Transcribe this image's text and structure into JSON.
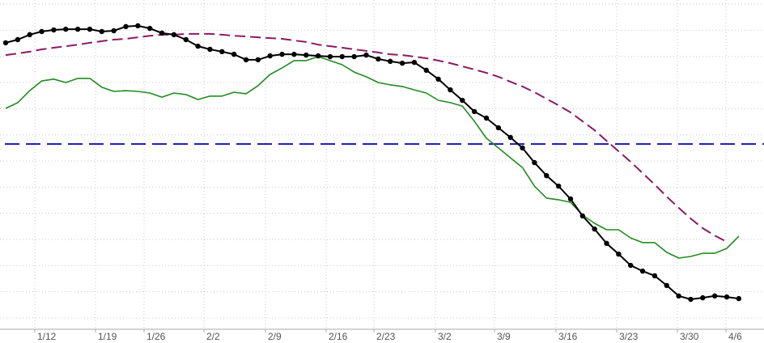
{
  "chart_data": {
    "type": "line",
    "title": "",
    "xlabel": "",
    "ylabel": "",
    "y_units_note_visible": false,
    "ylim": [
      -0.43,
      12.1
    ],
    "grid": true,
    "legend": "none",
    "x_ticks": [
      "1/12",
      "1/19",
      "1/26",
      "2/2",
      "2/9",
      "2/16",
      "2/23",
      "3/2",
      "3/9",
      "3/16",
      "3/23",
      "3/30",
      "4/6"
    ],
    "colors": {
      "black_series": "#000000",
      "green_series": "#228b22",
      "maroon_series": "#8b1a62",
      "blue_reference": "#2020b8",
      "grid": "#c8c8c8",
      "axis": "#aaaaaa"
    },
    "series": [
      {
        "style": "solid-with-markers",
        "color": "#000000",
        "values": [
          10.52,
          10.64,
          10.83,
          10.95,
          11.01,
          11.04,
          11.04,
          11.04,
          10.95,
          10.98,
          11.14,
          11.17,
          11.07,
          10.89,
          10.83,
          10.64,
          10.39,
          10.27,
          10.18,
          10.08,
          9.87,
          9.87,
          10.02,
          10.08,
          10.08,
          10.05,
          10.02,
          9.99,
          9.99,
          9.99,
          10.05,
          9.9,
          9.81,
          9.74,
          9.77,
          9.47,
          9.13,
          8.72,
          8.32,
          7.89,
          7.64,
          7.27,
          6.9,
          6.5,
          5.94,
          5.44,
          5.04,
          4.55,
          3.9,
          3.4,
          2.85,
          2.44,
          2.01,
          1.79,
          1.61,
          1.24,
          0.84,
          0.71,
          0.77,
          0.84,
          0.8,
          0.74
        ]
      },
      {
        "style": "solid",
        "color": "#228b22",
        "values": [
          8.01,
          8.23,
          8.69,
          9.06,
          9.13,
          9.0,
          9.16,
          9.16,
          8.82,
          8.66,
          8.69,
          8.66,
          8.6,
          8.44,
          8.6,
          8.54,
          8.35,
          8.48,
          8.48,
          8.63,
          8.57,
          8.88,
          9.31,
          9.56,
          9.84,
          9.84,
          9.99,
          9.84,
          9.68,
          9.4,
          9.22,
          9.0,
          8.91,
          8.85,
          8.72,
          8.6,
          8.32,
          8.23,
          8.1,
          7.52,
          6.87,
          6.5,
          6.12,
          5.75,
          5.04,
          4.58,
          4.52,
          4.42,
          3.93,
          3.62,
          3.37,
          3.37,
          3.06,
          2.88,
          2.88,
          2.51,
          2.29,
          2.35,
          2.47,
          2.47,
          2.66,
          3.12
        ]
      },
      {
        "style": "dashed",
        "color": "#8b1a62",
        "values": [
          10.05,
          10.11,
          10.18,
          10.27,
          10.33,
          10.39,
          10.45,
          10.52,
          10.58,
          10.64,
          10.67,
          10.73,
          10.79,
          10.83,
          10.83,
          10.86,
          10.86,
          10.86,
          10.83,
          10.79,
          10.76,
          10.73,
          10.7,
          10.67,
          10.61,
          10.55,
          10.45,
          10.39,
          10.33,
          10.27,
          10.21,
          10.15,
          10.08,
          10.05,
          9.99,
          9.93,
          9.84,
          9.74,
          9.62,
          9.5,
          9.37,
          9.22,
          9.03,
          8.85,
          8.63,
          8.38,
          8.13,
          7.86,
          7.52,
          7.18,
          6.77,
          6.37,
          5.97,
          5.54,
          5.1,
          4.64,
          4.21,
          3.8,
          3.43,
          3.15,
          2.91
        ]
      },
      {
        "style": "dashed-horizontal",
        "color": "#2020b8",
        "constant": 6.65
      }
    ]
  }
}
